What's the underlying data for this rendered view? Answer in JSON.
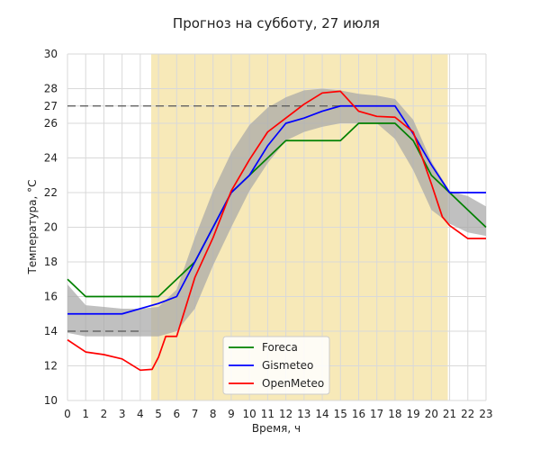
{
  "chart_data": {
    "type": "line",
    "title": "Прогноз на субботу, 27 июля",
    "xlabel": "Время, ч",
    "ylabel": "Температура, °C",
    "xlim": [
      0,
      23
    ],
    "ylim": [
      10,
      30
    ],
    "x_ticks": [
      0,
      1,
      2,
      3,
      4,
      5,
      6,
      7,
      8,
      9,
      10,
      11,
      12,
      13,
      14,
      15,
      16,
      17,
      18,
      19,
      20,
      21,
      22,
      23
    ],
    "y_ticks": [
      10,
      12,
      14,
      16,
      18,
      20,
      22,
      24,
      26,
      27,
      28,
      30
    ],
    "grid": true,
    "legend_position": "lower-center",
    "daylight_span": {
      "x": [
        4.6,
        20.9
      ],
      "color": "#f7e9b8"
    },
    "reference_lines": [
      {
        "y": 27,
        "x": [
          0,
          15
        ],
        "style": "dashed",
        "color": "#555555"
      },
      {
        "y": 14,
        "x": [
          0,
          4
        ],
        "style": "dashed",
        "color": "#555555"
      }
    ],
    "uncertainty_band": {
      "color": "#a8a8a8",
      "x": [
        0,
        1,
        2,
        3,
        4,
        5,
        6,
        7,
        8,
        9,
        10,
        11,
        12,
        13,
        14,
        15,
        16,
        17,
        18,
        19,
        20,
        21,
        22,
        23
      ],
      "lower": [
        13.9,
        13.7,
        13.7,
        13.7,
        13.7,
        13.7,
        14.0,
        15.3,
        17.8,
        20.0,
        22.1,
        23.7,
        25.0,
        25.5,
        25.8,
        26.0,
        26.0,
        26.0,
        25.1,
        23.3,
        21.0,
        20.2,
        19.7,
        19.5
      ],
      "upper": [
        16.7,
        15.5,
        15.4,
        15.3,
        15.3,
        15.4,
        16.4,
        19.4,
        22.1,
        24.3,
        25.9,
        26.9,
        27.5,
        27.9,
        28.0,
        27.9,
        27.7,
        27.6,
        27.4,
        26.2,
        23.8,
        22.1,
        21.8,
        21.2
      ]
    },
    "series": [
      {
        "name": "Foreca",
        "color": "#008000",
        "x": [
          0,
          1,
          2,
          3,
          4,
          5,
          6,
          7,
          8,
          9,
          10,
          11,
          12,
          13,
          14,
          15,
          16,
          17,
          18,
          19,
          20,
          21,
          22,
          23
        ],
        "values": [
          17,
          16,
          16,
          16,
          16,
          16,
          17,
          18,
          20,
          22,
          23,
          24,
          25,
          25,
          25,
          25,
          26,
          26,
          26,
          25,
          23,
          22,
          21,
          20
        ]
      },
      {
        "name": "Gismeteo",
        "color": "#0000ff",
        "x": [
          0,
          1,
          2,
          3,
          4,
          5,
          6,
          7,
          8,
          9,
          10,
          11,
          12,
          13,
          14,
          15,
          16,
          17,
          18,
          19,
          20,
          21,
          22,
          23
        ],
        "values": [
          15,
          15,
          15,
          15,
          15.3,
          15.6,
          16,
          18,
          20,
          22,
          23,
          24.7,
          26,
          26.3,
          26.7,
          27,
          27,
          27,
          27,
          25.4,
          23.6,
          22,
          22,
          22
        ]
      },
      {
        "name": "OpenMeteo",
        "color": "#ff0000",
        "x": [
          0,
          1,
          2,
          3,
          4,
          4.65,
          5,
          5.4,
          6,
          7,
          8,
          9,
          10,
          11,
          12,
          13,
          14,
          15,
          16,
          17,
          18,
          19,
          20,
          20.6,
          21,
          22,
          23
        ],
        "values": [
          13.5,
          12.8,
          12.65,
          12.4,
          11.75,
          11.8,
          12.5,
          13.7,
          13.7,
          17.1,
          19.4,
          22.1,
          23.9,
          25.5,
          26.3,
          27.1,
          27.75,
          27.85,
          26.7,
          26.4,
          26.35,
          25.5,
          22.5,
          20.6,
          20.1,
          19.35,
          19.35
        ]
      }
    ]
  }
}
